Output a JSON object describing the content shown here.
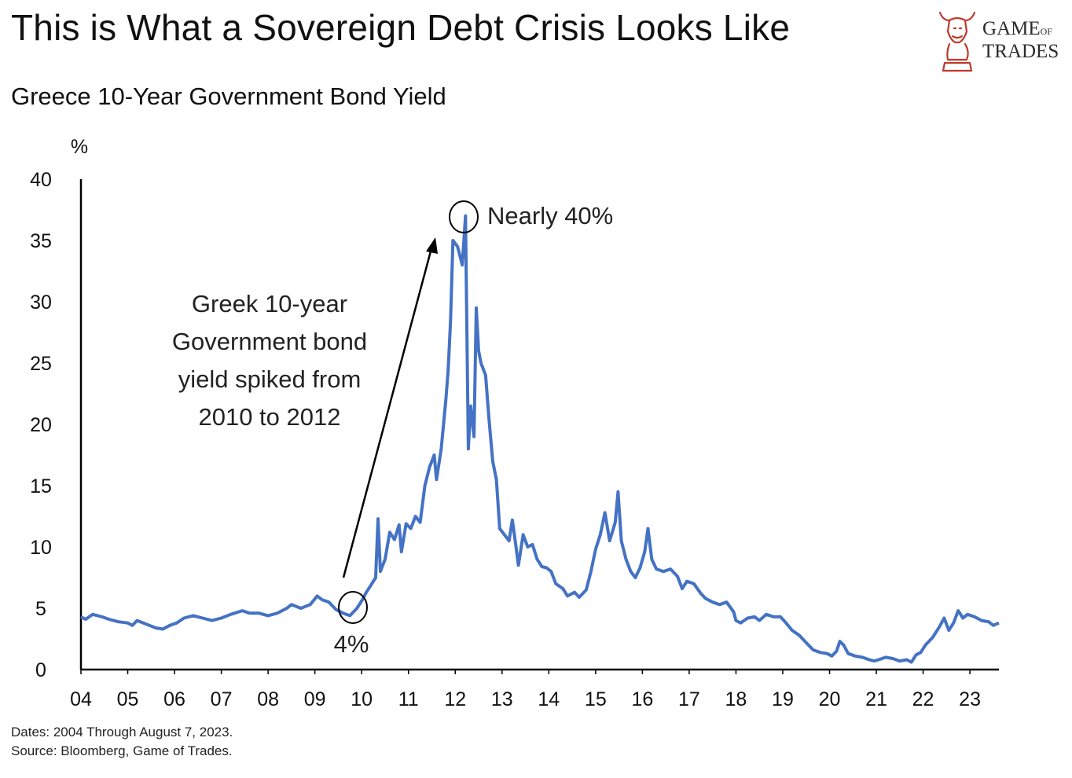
{
  "header": {
    "title": "This is What a Sovereign Debt Crisis Looks Like",
    "subtitle": "Greece 10-Year Government Bond Yield"
  },
  "logo": {
    "line1_big": "G",
    "line1_rest": "AME",
    "line1_small": "OF",
    "line2": "TRADES",
    "color": "#c0392b"
  },
  "footer": {
    "dates": "Dates: 2004 Through August 7, 2023.",
    "source": "Source: Bloomberg, Game of Trades."
  },
  "chart_data": {
    "type": "line",
    "title": "Greece 10-Year Government Bond Yield",
    "ylabel": "%",
    "xlabel": "",
    "xlim": [
      2004.0,
      2023.62
    ],
    "ylim": [
      0,
      40
    ],
    "yticks": [
      0,
      5,
      10,
      15,
      20,
      25,
      30,
      35,
      40
    ],
    "xtick_labels": [
      "04",
      "05",
      "06",
      "07",
      "08",
      "09",
      "10",
      "11",
      "12",
      "13",
      "14",
      "15",
      "16",
      "17",
      "18",
      "19",
      "20",
      "21",
      "22",
      "23"
    ],
    "line_color": "#4472c4",
    "grid": false,
    "series": [
      {
        "name": "",
        "points": [
          [
            2004.0,
            4.3
          ],
          [
            2004.1,
            4.1
          ],
          [
            2004.25,
            4.5
          ],
          [
            2004.45,
            4.3
          ],
          [
            2004.6,
            4.1
          ],
          [
            2004.8,
            3.9
          ],
          [
            2005.0,
            3.8
          ],
          [
            2005.1,
            3.6
          ],
          [
            2005.2,
            4.0
          ],
          [
            2005.4,
            3.7
          ],
          [
            2005.6,
            3.4
          ],
          [
            2005.75,
            3.3
          ],
          [
            2005.9,
            3.6
          ],
          [
            2006.05,
            3.8
          ],
          [
            2006.2,
            4.2
          ],
          [
            2006.4,
            4.4
          ],
          [
            2006.6,
            4.2
          ],
          [
            2006.8,
            4.0
          ],
          [
            2007.0,
            4.2
          ],
          [
            2007.2,
            4.5
          ],
          [
            2007.45,
            4.8
          ],
          [
            2007.6,
            4.6
          ],
          [
            2007.8,
            4.6
          ],
          [
            2008.0,
            4.4
          ],
          [
            2008.2,
            4.6
          ],
          [
            2008.4,
            5.0
          ],
          [
            2008.5,
            5.3
          ],
          [
            2008.7,
            5.0
          ],
          [
            2008.9,
            5.3
          ],
          [
            2009.05,
            6.0
          ],
          [
            2009.15,
            5.7
          ],
          [
            2009.3,
            5.5
          ],
          [
            2009.45,
            4.9
          ],
          [
            2009.6,
            4.6
          ],
          [
            2009.75,
            4.4
          ],
          [
            2009.9,
            5.0
          ],
          [
            2010.0,
            5.6
          ],
          [
            2010.1,
            6.3
          ],
          [
            2010.2,
            6.9
          ],
          [
            2010.3,
            7.5
          ],
          [
            2010.35,
            12.3
          ],
          [
            2010.4,
            8.0
          ],
          [
            2010.5,
            9.0
          ],
          [
            2010.6,
            11.2
          ],
          [
            2010.7,
            10.6
          ],
          [
            2010.8,
            11.8
          ],
          [
            2010.85,
            9.6
          ],
          [
            2010.95,
            11.9
          ],
          [
            2011.05,
            11.5
          ],
          [
            2011.15,
            12.5
          ],
          [
            2011.25,
            12.0
          ],
          [
            2011.35,
            15.0
          ],
          [
            2011.45,
            16.5
          ],
          [
            2011.55,
            17.5
          ],
          [
            2011.6,
            15.5
          ],
          [
            2011.7,
            18.0
          ],
          [
            2011.8,
            22.0
          ],
          [
            2011.85,
            24.5
          ],
          [
            2011.9,
            28.5
          ],
          [
            2011.95,
            35.0
          ],
          [
            2012.05,
            34.5
          ],
          [
            2012.15,
            33.0
          ],
          [
            2012.22,
            37.0
          ],
          [
            2012.28,
            18.0
          ],
          [
            2012.33,
            21.5
          ],
          [
            2012.4,
            19.0
          ],
          [
            2012.45,
            29.5
          ],
          [
            2012.5,
            26.0
          ],
          [
            2012.55,
            25.0
          ],
          [
            2012.65,
            24.0
          ],
          [
            2012.72,
            20.5
          ],
          [
            2012.8,
            17.0
          ],
          [
            2012.88,
            15.5
          ],
          [
            2012.95,
            11.5
          ],
          [
            2013.05,
            11.0
          ],
          [
            2013.15,
            10.5
          ],
          [
            2013.22,
            12.2
          ],
          [
            2013.3,
            10.0
          ],
          [
            2013.35,
            8.5
          ],
          [
            2013.45,
            11.0
          ],
          [
            2013.55,
            10.0
          ],
          [
            2013.65,
            10.2
          ],
          [
            2013.75,
            9.0
          ],
          [
            2013.85,
            8.4
          ],
          [
            2013.95,
            8.3
          ],
          [
            2014.05,
            8.0
          ],
          [
            2014.15,
            7.0
          ],
          [
            2014.3,
            6.6
          ],
          [
            2014.4,
            6.0
          ],
          [
            2014.55,
            6.3
          ],
          [
            2014.65,
            5.9
          ],
          [
            2014.8,
            6.5
          ],
          [
            2014.9,
            8.0
          ],
          [
            2015.0,
            9.8
          ],
          [
            2015.1,
            11.0
          ],
          [
            2015.2,
            12.8
          ],
          [
            2015.3,
            10.5
          ],
          [
            2015.42,
            12.0
          ],
          [
            2015.48,
            14.5
          ],
          [
            2015.55,
            10.5
          ],
          [
            2015.65,
            9.0
          ],
          [
            2015.75,
            8.0
          ],
          [
            2015.85,
            7.5
          ],
          [
            2015.95,
            8.3
          ],
          [
            2016.05,
            9.6
          ],
          [
            2016.12,
            11.5
          ],
          [
            2016.2,
            9.0
          ],
          [
            2016.3,
            8.2
          ],
          [
            2016.45,
            8.0
          ],
          [
            2016.6,
            8.2
          ],
          [
            2016.75,
            7.6
          ],
          [
            2016.85,
            6.6
          ],
          [
            2016.95,
            7.2
          ],
          [
            2017.1,
            7.0
          ],
          [
            2017.25,
            6.2
          ],
          [
            2017.35,
            5.8
          ],
          [
            2017.5,
            5.5
          ],
          [
            2017.65,
            5.3
          ],
          [
            2017.8,
            5.5
          ],
          [
            2017.95,
            4.7
          ],
          [
            2018.0,
            4.0
          ],
          [
            2018.1,
            3.8
          ],
          [
            2018.25,
            4.2
          ],
          [
            2018.4,
            4.3
          ],
          [
            2018.5,
            4.0
          ],
          [
            2018.65,
            4.5
          ],
          [
            2018.8,
            4.3
          ],
          [
            2018.95,
            4.3
          ],
          [
            2019.05,
            3.9
          ],
          [
            2019.2,
            3.2
          ],
          [
            2019.35,
            2.8
          ],
          [
            2019.5,
            2.2
          ],
          [
            2019.65,
            1.6
          ],
          [
            2019.8,
            1.4
          ],
          [
            2019.95,
            1.3
          ],
          [
            2020.05,
            1.1
          ],
          [
            2020.15,
            1.5
          ],
          [
            2020.22,
            2.3
          ],
          [
            2020.3,
            2.0
          ],
          [
            2020.4,
            1.3
          ],
          [
            2020.55,
            1.1
          ],
          [
            2020.7,
            1.0
          ],
          [
            2020.85,
            0.8
          ],
          [
            2020.95,
            0.7
          ],
          [
            2021.05,
            0.8
          ],
          [
            2021.2,
            1.0
          ],
          [
            2021.35,
            0.9
          ],
          [
            2021.5,
            0.7
          ],
          [
            2021.65,
            0.8
          ],
          [
            2021.75,
            0.6
          ],
          [
            2021.85,
            1.2
          ],
          [
            2021.95,
            1.4
          ],
          [
            2022.05,
            2.0
          ],
          [
            2022.2,
            2.6
          ],
          [
            2022.35,
            3.5
          ],
          [
            2022.45,
            4.2
          ],
          [
            2022.55,
            3.2
          ],
          [
            2022.65,
            3.8
          ],
          [
            2022.75,
            4.8
          ],
          [
            2022.85,
            4.2
          ],
          [
            2022.95,
            4.5
          ],
          [
            2023.1,
            4.3
          ],
          [
            2023.25,
            4.0
          ],
          [
            2023.4,
            3.9
          ],
          [
            2023.5,
            3.6
          ],
          [
            2023.62,
            3.8
          ]
        ]
      }
    ],
    "annotations": {
      "low_label": "4%",
      "peak_label": "Nearly 40%",
      "arrow_text": [
        "Greek 10-year",
        "Government bond",
        "yield spiked from",
        "2010 to 2012"
      ]
    }
  }
}
